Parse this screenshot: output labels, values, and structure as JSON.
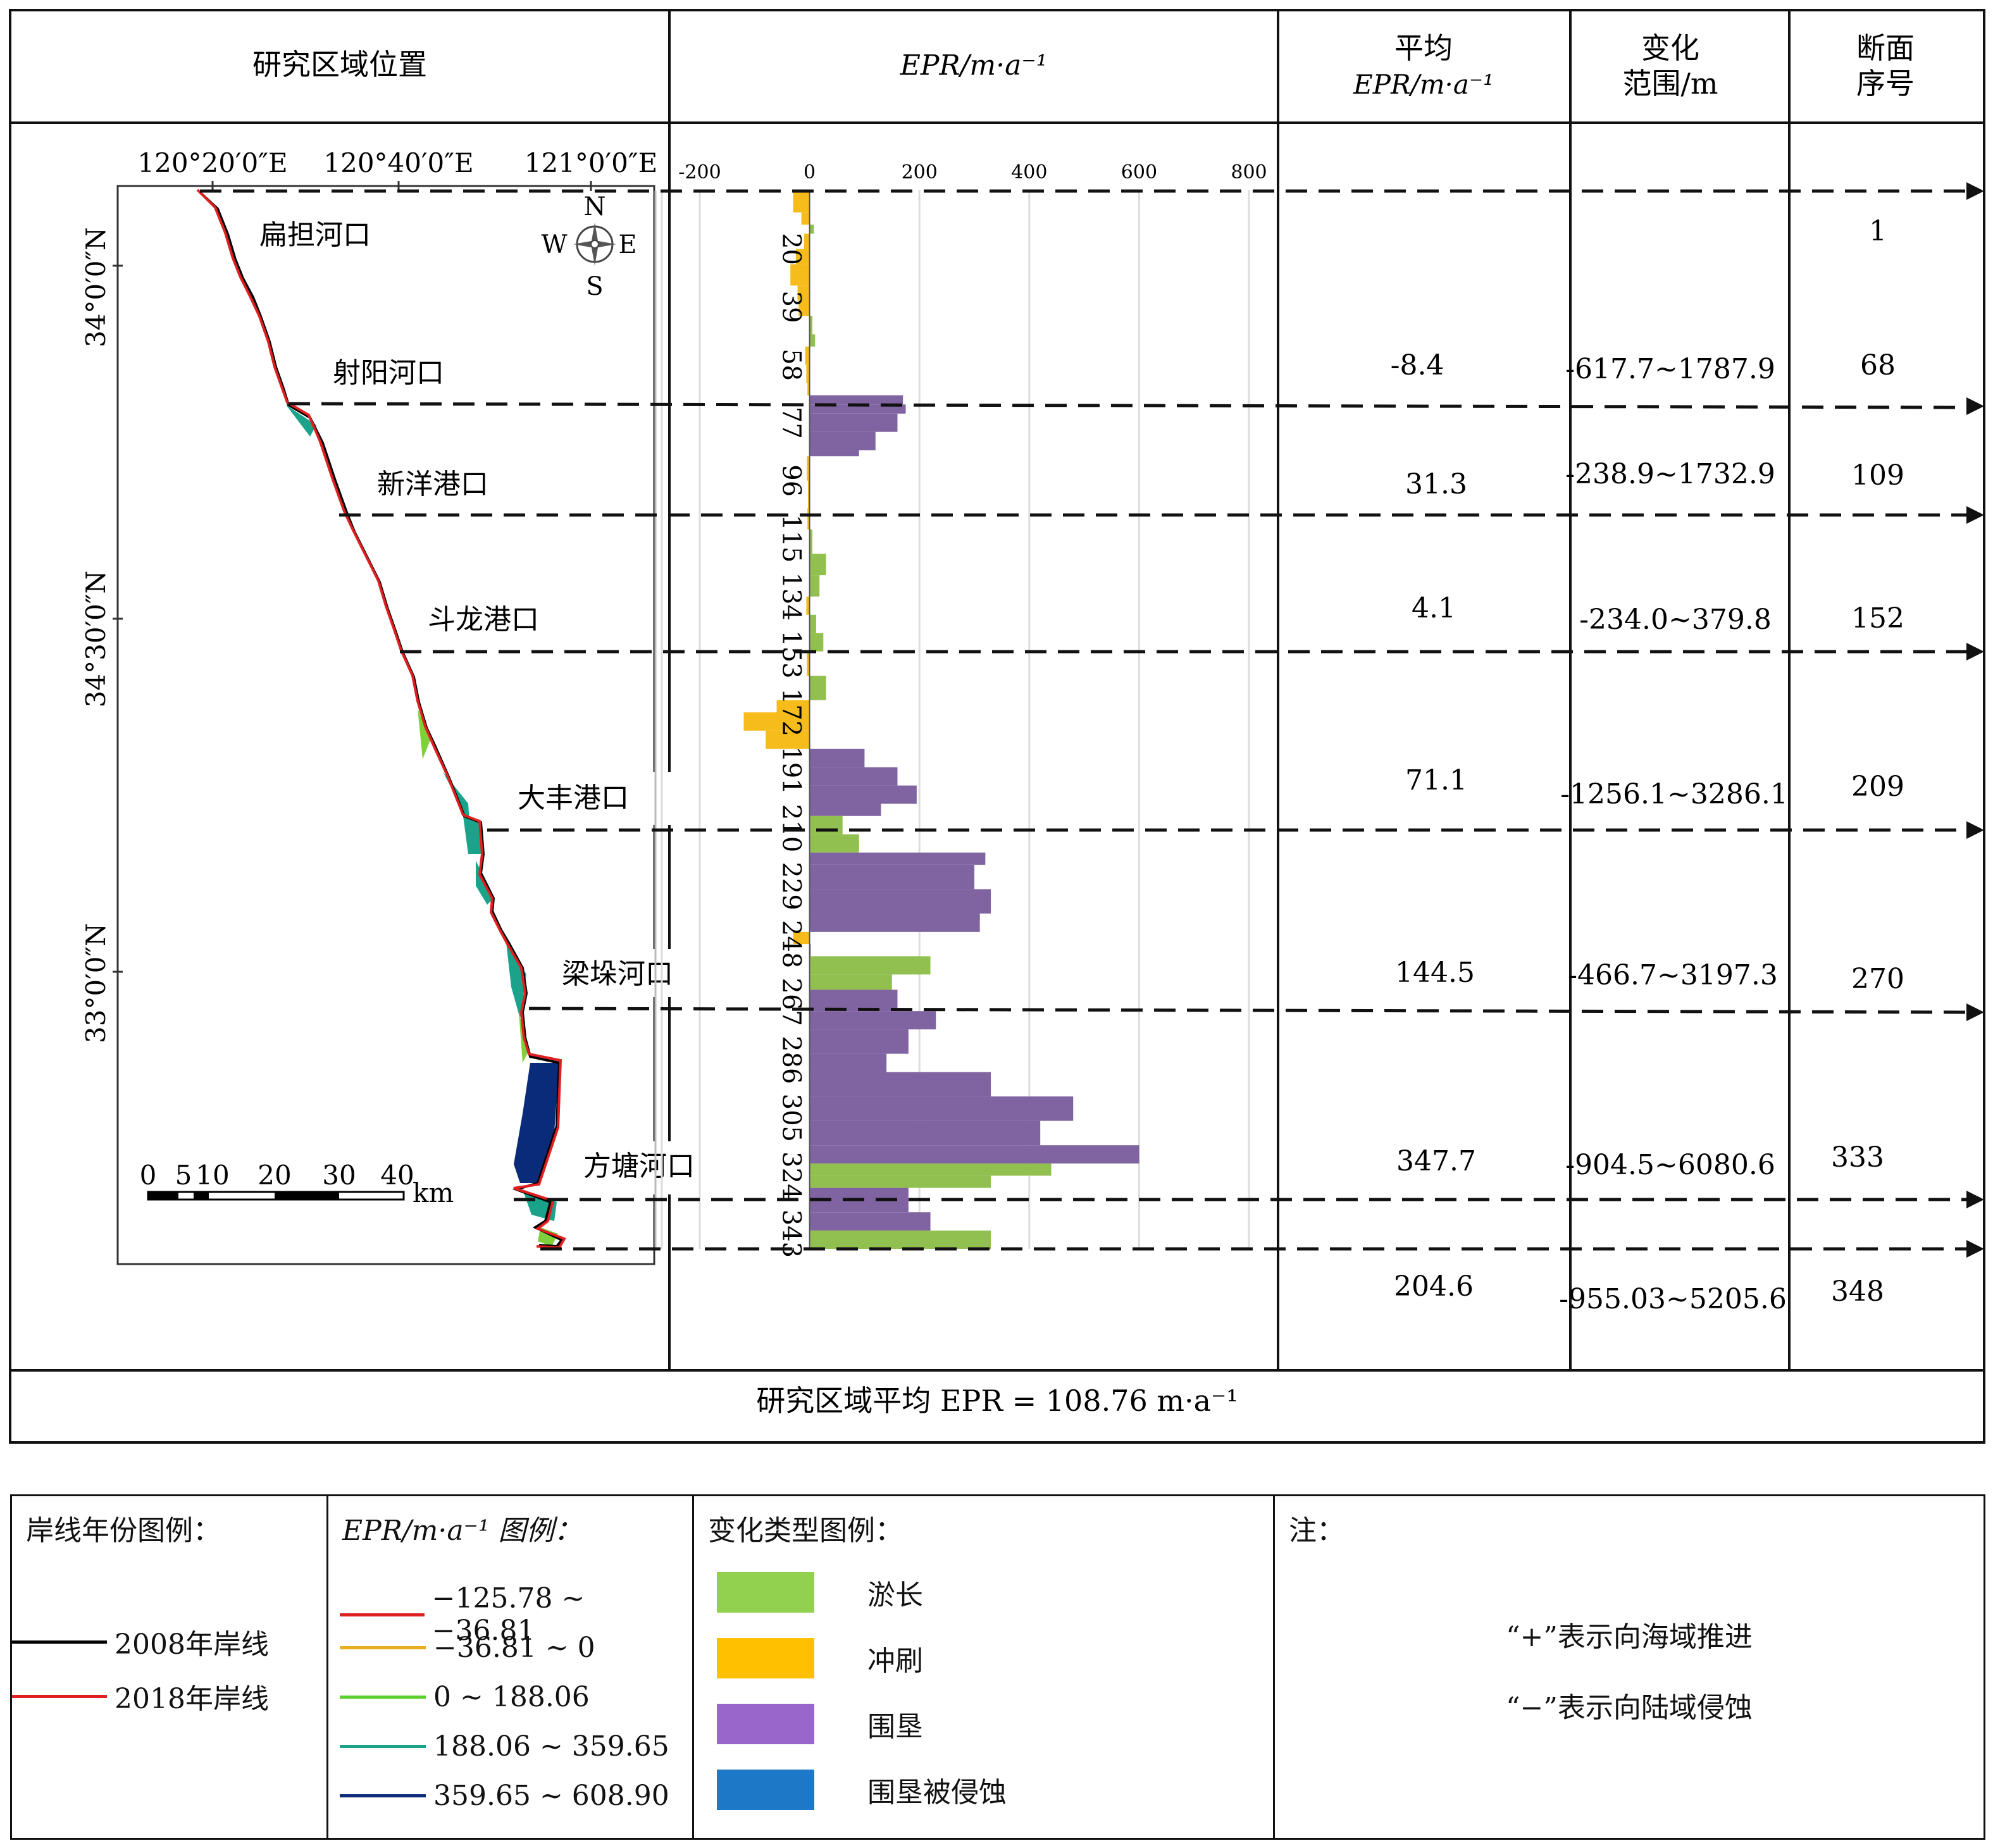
{
  "table": {
    "headers": {
      "location": "研究区域位置",
      "epr_chart": "EPR/m·a⁻¹",
      "mean_line1": "平均",
      "mean_line2": "EPR/m·a⁻¹",
      "range_line1": "变化",
      "range_line2": "范围/m",
      "section_line1": "断面",
      "section_line2": "序号"
    },
    "rows": [
      {
        "mean": "-8.4",
        "range": "-617.7~1787.9",
        "section": "68"
      },
      {
        "mean": "31.3",
        "range": "-238.9~1732.9",
        "section": "109"
      },
      {
        "mean": "4.1",
        "range": "-234.0~379.8",
        "section": "152"
      },
      {
        "mean": "71.1",
        "range": "-1256.1~3286.1",
        "section": "209"
      },
      {
        "mean": "144.5",
        "range": "-466.7~3197.3",
        "section": "270"
      },
      {
        "mean": "347.7",
        "range": "-904.5~6080.6",
        "section": "333"
      },
      {
        "mean": "204.6",
        "range": "-955.03~5205.6",
        "section": "348"
      }
    ],
    "first_section": "1",
    "footer": "研究区域平均 EPR = 108.76 m·a⁻¹"
  },
  "map": {
    "lon_labels": [
      "120°20′0″E",
      "120°40′0″E",
      "121°0′0″E"
    ],
    "lat_labels": [
      "34°0′0″N",
      "34°30′0″N",
      "33°0′0″N"
    ],
    "compass": {
      "n": "N",
      "s": "S",
      "w": "W",
      "e": "E"
    },
    "places": [
      "扁担河口",
      "射阳河口",
      "新洋港口",
      "斗龙港口",
      "大丰港口",
      "梁垛河口",
      "方塘河口"
    ],
    "scale_labels": [
      "0",
      "5",
      "10",
      "20",
      "30",
      "40"
    ],
    "scale_unit": "km",
    "colors": {
      "shoreline_2008": "#000000",
      "shoreline_2018": "#e02020",
      "fill_mid": "#1aa38a",
      "fill_high": "#0a2a7a",
      "fill_low": "#7fd13b"
    }
  },
  "chart_data": {
    "type": "bar",
    "orientation": "horizontal",
    "xlabel": "EPR/m·a⁻¹",
    "xlim": [
      -200,
      800
    ],
    "xticks": [
      -200,
      0,
      200,
      400,
      600,
      800
    ],
    "ylabel_ticks": [
      20,
      39,
      58,
      77,
      96,
      115,
      134,
      153,
      172,
      191,
      210,
      229,
      248,
      267,
      286,
      305,
      324,
      343
    ],
    "ylim": [
      1,
      348
    ],
    "categories_legend": {
      "accretion": "淤长",
      "erosion": "冲刷",
      "reclamation": "围垦"
    },
    "colors": {
      "accretion": "#92c050",
      "erosion": "#f6bc1b",
      "reclamation": "#8064a2"
    },
    "segments": [
      {
        "from": 1,
        "to": 8,
        "type": "erosion",
        "value": -30
      },
      {
        "from": 8,
        "to": 12,
        "type": "erosion",
        "value": -15
      },
      {
        "from": 12,
        "to": 15,
        "type": "accretion",
        "value": 8
      },
      {
        "from": 15,
        "to": 20,
        "type": "erosion",
        "value": -10
      },
      {
        "from": 20,
        "to": 25,
        "type": "erosion",
        "value": -25
      },
      {
        "from": 25,
        "to": 32,
        "type": "erosion",
        "value": -35
      },
      {
        "from": 32,
        "to": 37,
        "type": "erosion",
        "value": -22
      },
      {
        "from": 37,
        "to": 42,
        "type": "erosion",
        "value": -20
      },
      {
        "from": 42,
        "to": 48,
        "type": "accretion",
        "value": 5
      },
      {
        "from": 48,
        "to": 52,
        "type": "accretion",
        "value": 10
      },
      {
        "from": 52,
        "to": 58,
        "type": "erosion",
        "value": -8
      },
      {
        "from": 58,
        "to": 64,
        "type": "erosion",
        "value": -6
      },
      {
        "from": 64,
        "to": 68,
        "type": "erosion",
        "value": -4
      },
      {
        "from": 68,
        "to": 71,
        "type": "reclamation",
        "value": 170
      },
      {
        "from": 71,
        "to": 74,
        "type": "reclamation",
        "value": 175
      },
      {
        "from": 74,
        "to": 80,
        "type": "reclamation",
        "value": 160
      },
      {
        "from": 80,
        "to": 86,
        "type": "reclamation",
        "value": 120
      },
      {
        "from": 86,
        "to": 88,
        "type": "reclamation",
        "value": 90
      },
      {
        "from": 88,
        "to": 96,
        "type": "erosion",
        "value": -5
      },
      {
        "from": 96,
        "to": 105,
        "type": "erosion",
        "value": -3
      },
      {
        "from": 105,
        "to": 112,
        "type": "erosion",
        "value": -4
      },
      {
        "from": 112,
        "to": 120,
        "type": "accretion",
        "value": 5
      },
      {
        "from": 120,
        "to": 127,
        "type": "accretion",
        "value": 30
      },
      {
        "from": 127,
        "to": 134,
        "type": "accretion",
        "value": 18
      },
      {
        "from": 134,
        "to": 140,
        "type": "erosion",
        "value": -6
      },
      {
        "from": 140,
        "to": 146,
        "type": "accretion",
        "value": 12
      },
      {
        "from": 146,
        "to": 152,
        "type": "accretion",
        "value": 25
      },
      {
        "from": 152,
        "to": 160,
        "type": "erosion",
        "value": -5
      },
      {
        "from": 160,
        "to": 168,
        "type": "accretion",
        "value": 30
      },
      {
        "from": 168,
        "to": 172,
        "type": "erosion",
        "value": -60
      },
      {
        "from": 172,
        "to": 178,
        "type": "erosion",
        "value": -120
      },
      {
        "from": 178,
        "to": 184,
        "type": "erosion",
        "value": -80
      },
      {
        "from": 184,
        "to": 190,
        "type": "reclamation",
        "value": 100
      },
      {
        "from": 190,
        "to": 196,
        "type": "reclamation",
        "value": 160
      },
      {
        "from": 196,
        "to": 202,
        "type": "reclamation",
        "value": 195
      },
      {
        "from": 202,
        "to": 206,
        "type": "reclamation",
        "value": 130
      },
      {
        "from": 206,
        "to": 212,
        "type": "accretion",
        "value": 60
      },
      {
        "from": 212,
        "to": 218,
        "type": "accretion",
        "value": 90
      },
      {
        "from": 218,
        "to": 222,
        "type": "reclamation",
        "value": 320
      },
      {
        "from": 222,
        "to": 230,
        "type": "reclamation",
        "value": 300
      },
      {
        "from": 230,
        "to": 238,
        "type": "reclamation",
        "value": 330
      },
      {
        "from": 238,
        "to": 244,
        "type": "reclamation",
        "value": 310
      },
      {
        "from": 244,
        "to": 248,
        "type": "erosion",
        "value": -30
      },
      {
        "from": 248,
        "to": 252,
        "type": "reclamation",
        "value": 2
      },
      {
        "from": 252,
        "to": 258,
        "type": "accretion",
        "value": 220
      },
      {
        "from": 258,
        "to": 263,
        "type": "accretion",
        "value": 150
      },
      {
        "from": 263,
        "to": 270,
        "type": "reclamation",
        "value": 160
      },
      {
        "from": 270,
        "to": 276,
        "type": "reclamation",
        "value": 230
      },
      {
        "from": 276,
        "to": 284,
        "type": "reclamation",
        "value": 180
      },
      {
        "from": 284,
        "to": 290,
        "type": "reclamation",
        "value": 140
      },
      {
        "from": 290,
        "to": 298,
        "type": "reclamation",
        "value": 330
      },
      {
        "from": 298,
        "to": 306,
        "type": "reclamation",
        "value": 480
      },
      {
        "from": 306,
        "to": 314,
        "type": "reclamation",
        "value": 420
      },
      {
        "from": 314,
        "to": 320,
        "type": "reclamation",
        "value": 600
      },
      {
        "from": 320,
        "to": 324,
        "type": "accretion",
        "value": 440
      },
      {
        "from": 324,
        "to": 328,
        "type": "accretion",
        "value": 330
      },
      {
        "from": 328,
        "to": 336,
        "type": "reclamation",
        "value": 180
      },
      {
        "from": 336,
        "to": 342,
        "type": "reclamation",
        "value": 220
      },
      {
        "from": 342,
        "to": 348,
        "type": "accretion",
        "value": 330
      }
    ]
  },
  "legend": {
    "shoreline": {
      "title": "岸线年份图例：",
      "items": [
        {
          "label": "2008年岸线",
          "color": "#000000"
        },
        {
          "label": "2018年岸线",
          "color": "#e02020"
        }
      ]
    },
    "epr": {
      "title": "EPR/m·a⁻¹ 图例：",
      "items": [
        {
          "label": "−125.78 ~ −36.81",
          "color": "#e02020"
        },
        {
          "label": "−36.81 ~ 0",
          "color": "#e8b020"
        },
        {
          "label": "0 ~ 188.06",
          "color": "#5cd02a"
        },
        {
          "label": "188.06 ~ 359.65",
          "color": "#1aa38a"
        },
        {
          "label": "359.65 ~ 608.90",
          "color": "#0a2a7a"
        }
      ]
    },
    "change_type": {
      "title": "变化类型图例：",
      "items": [
        {
          "label": "淤长",
          "color": "#92d050"
        },
        {
          "label": "冲刷",
          "color": "#ffc000"
        },
        {
          "label": "围垦",
          "color": "#9966cc"
        },
        {
          "label": "围垦被侵蚀",
          "color": "#1e78c8"
        }
      ]
    },
    "notes": {
      "title": "注：",
      "lines": [
        "“+”表示向海域推进",
        "“−”表示向陆域侵蚀"
      ]
    }
  }
}
